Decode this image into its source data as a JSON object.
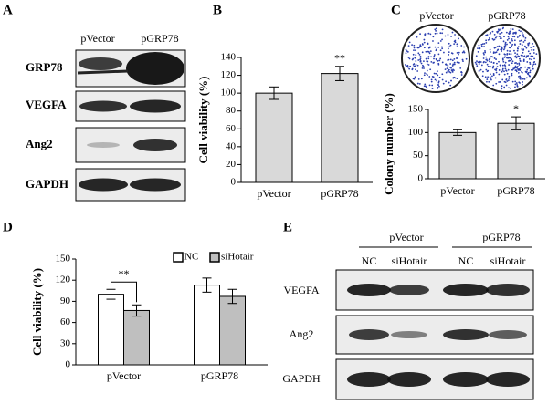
{
  "panel_labels": [
    "A",
    "B",
    "C",
    "D",
    "E"
  ],
  "blot_a": {
    "lanes": [
      "pVector",
      "pGRP78"
    ],
    "rows": [
      "GRP78",
      "VEGFA",
      "Ang2",
      "GAPDH"
    ]
  },
  "colony_images": {
    "labels": [
      "pVector",
      "pGRP78"
    ]
  },
  "blot_e": {
    "groups": [
      "pVector",
      "pGRP78"
    ],
    "lanes": [
      "NC",
      "siHotair",
      "NC",
      "siHotair"
    ],
    "rows": [
      "VEGFA",
      "Ang2",
      "GAPDH"
    ]
  },
  "chart_data": [
    {
      "type": "bar",
      "y_label": "Cell viability (%)",
      "categories": [
        "pVector",
        "pGRP78"
      ],
      "values": [
        100,
        122
      ],
      "errors": [
        7,
        8
      ],
      "color": "#d9d9d9",
      "annotation": "**",
      "ylim": [
        0,
        140
      ],
      "yticks": [
        0,
        20,
        40,
        60,
        80,
        100,
        120,
        140
      ]
    },
    {
      "type": "bar",
      "y_label": "Colony number (%)",
      "categories": [
        "pVector",
        "pGRP78"
      ],
      "values": [
        100,
        120
      ],
      "errors": [
        6,
        14
      ],
      "color": "#d9d9d9",
      "annotation": "*",
      "ylim": [
        0,
        150
      ],
      "yticks": [
        0,
        50,
        100,
        150
      ]
    },
    {
      "type": "bar",
      "y_label": "Cell viability (%)",
      "categories": [
        "pVector",
        "pGRP78"
      ],
      "series": [
        {
          "name": "NC",
          "color": "#ffffff",
          "values": [
            100,
            113
          ],
          "errors": [
            7,
            10
          ]
        },
        {
          "name": "siHotair",
          "color": "#bfbfbf",
          "values": [
            77,
            97
          ],
          "errors": [
            8,
            10
          ]
        }
      ],
      "annotation": "**",
      "ylim": [
        0,
        150
      ],
      "yticks": [
        0,
        30,
        60,
        90,
        120,
        150
      ]
    }
  ]
}
